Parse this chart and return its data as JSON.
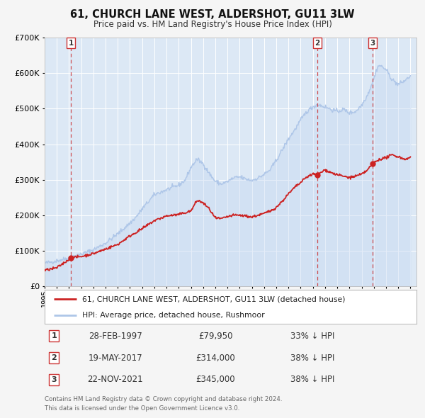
{
  "title": "61, CHURCH LANE WEST, ALDERSHOT, GU11 3LW",
  "subtitle": "Price paid vs. HM Land Registry's House Price Index (HPI)",
  "hpi_label": "HPI: Average price, detached house, Rushmoor",
  "property_label": "61, CHURCH LANE WEST, ALDERSHOT, GU11 3LW (detached house)",
  "hpi_color": "#aec6e8",
  "hpi_fill_color": "#c8daf2",
  "property_color": "#cc2222",
  "sale_color": "#cc2222",
  "vline_color": "#cc3333",
  "background_color": "#f5f5f5",
  "plot_bg_color": "#dce8f5",
  "grid_color": "#ffffff",
  "ylim": [
    0,
    700000
  ],
  "xlim_start": 1995.0,
  "xlim_end": 2025.5,
  "sales": [
    {
      "num": 1,
      "date_str": "28-FEB-1997",
      "price": 79950,
      "pct": "33%",
      "x": 1997.16
    },
    {
      "num": 2,
      "date_str": "19-MAY-2017",
      "price": 314000,
      "pct": "38%",
      "x": 2017.38
    },
    {
      "num": 3,
      "date_str": "22-NOV-2021",
      "price": 345000,
      "pct": "38%",
      "x": 2021.9
    }
  ],
  "footnote_line1": "Contains HM Land Registry data © Crown copyright and database right 2024.",
  "footnote_line2": "This data is licensed under the Open Government Licence v3.0.",
  "hpi_anchors": {
    "1995.0": 65000,
    "1996.0": 72000,
    "1997.0": 80000,
    "1998.0": 91000,
    "1999.0": 103000,
    "2000.0": 122000,
    "2001.0": 148000,
    "2002.0": 178000,
    "2002.5": 195000,
    "2003.0": 218000,
    "2004.0": 258000,
    "2005.0": 272000,
    "2006.0": 285000,
    "2006.5": 298000,
    "2007.0": 335000,
    "2007.5": 358000,
    "2008.0": 345000,
    "2008.5": 318000,
    "2009.0": 295000,
    "2009.5": 288000,
    "2010.0": 295000,
    "2010.5": 305000,
    "2011.0": 308000,
    "2011.5": 302000,
    "2012.0": 298000,
    "2012.5": 305000,
    "2013.0": 315000,
    "2013.5": 328000,
    "2014.0": 355000,
    "2014.5": 385000,
    "2015.0": 415000,
    "2015.5": 440000,
    "2016.0": 468000,
    "2016.5": 492000,
    "2017.0": 505000,
    "2017.4": 512000,
    "2018.0": 505000,
    "2018.5": 498000,
    "2019.0": 492000,
    "2019.5": 498000,
    "2020.0": 488000,
    "2020.5": 492000,
    "2021.0": 510000,
    "2021.5": 540000,
    "2022.0": 585000,
    "2022.3": 618000,
    "2022.5": 622000,
    "2023.0": 610000,
    "2023.5": 582000,
    "2024.0": 568000,
    "2024.5": 578000,
    "2025.0": 592000
  },
  "prop_anchors": {
    "1995.0": 45000,
    "1996.0": 52000,
    "1997.16": 79950,
    "1998.0": 84000,
    "1999.0": 92000,
    "2000.0": 105000,
    "2001.0": 118000,
    "2002.0": 142000,
    "2003.0": 162000,
    "2004.0": 185000,
    "2005.0": 198000,
    "2006.0": 202000,
    "2007.0": 212000,
    "2007.5": 242000,
    "2008.0": 235000,
    "2008.5": 218000,
    "2009.0": 192000,
    "2009.5": 190000,
    "2010.0": 196000,
    "2010.5": 200000,
    "2011.0": 200000,
    "2011.5": 198000,
    "2012.0": 195000,
    "2012.5": 200000,
    "2013.0": 205000,
    "2013.5": 212000,
    "2014.0": 222000,
    "2014.5": 240000,
    "2015.0": 260000,
    "2015.5": 278000,
    "2016.0": 292000,
    "2016.5": 308000,
    "2017.0": 316000,
    "2017.38": 314000,
    "2018.0": 328000,
    "2018.5": 320000,
    "2019.0": 314000,
    "2019.5": 310000,
    "2020.0": 306000,
    "2020.5": 310000,
    "2021.0": 315000,
    "2021.5": 328000,
    "2021.9": 345000,
    "2022.0": 348000,
    "2022.5": 358000,
    "2023.0": 362000,
    "2023.5": 370000,
    "2024.0": 365000,
    "2024.5": 358000,
    "2025.0": 362000
  }
}
